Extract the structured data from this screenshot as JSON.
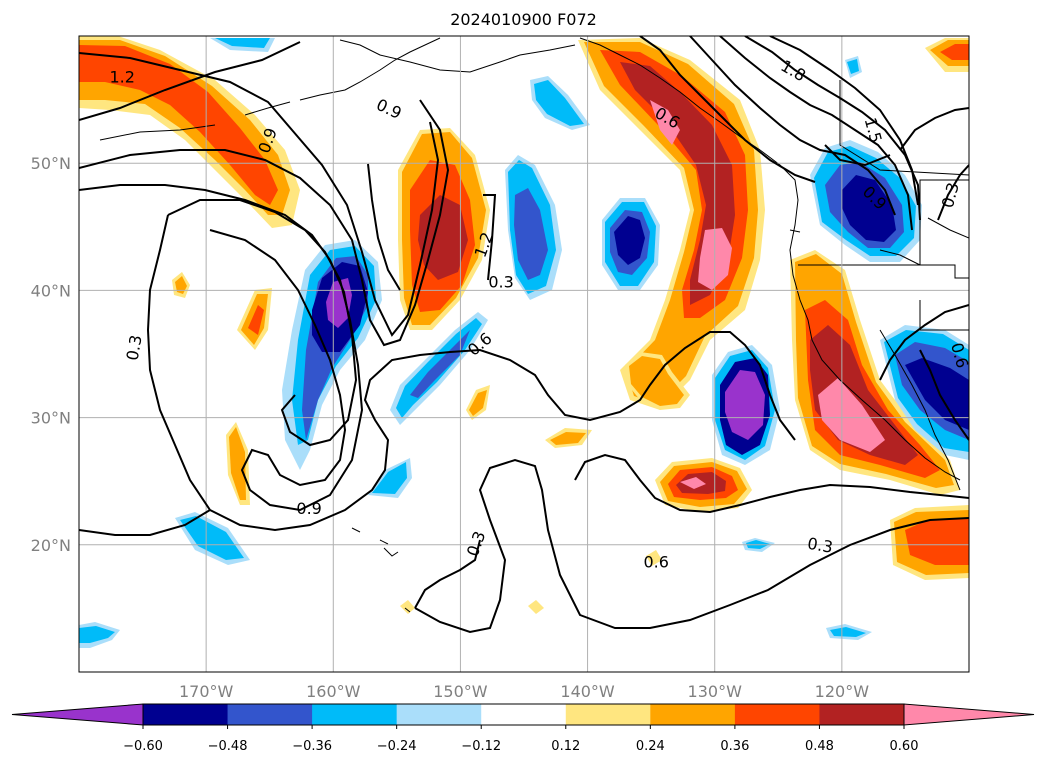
{
  "title": "2024010900 F072",
  "map": {
    "lon_range": [
      -180,
      -110
    ],
    "lat_range": [
      10,
      60
    ],
    "lon_ticks": [
      {
        "lon": -170,
        "label": "170°W"
      },
      {
        "lon": -160,
        "label": "160°W"
      },
      {
        "lon": -150,
        "label": "150°W"
      },
      {
        "lon": -140,
        "label": "140°W"
      },
      {
        "lon": -130,
        "label": "130°W"
      },
      {
        "lon": -120,
        "label": "120°W"
      }
    ],
    "lat_ticks": [
      {
        "lat": 50,
        "label": "50°N"
      },
      {
        "lat": 40,
        "label": "40°N"
      },
      {
        "lat": 30,
        "label": "30°N"
      },
      {
        "lat": 20,
        "label": "20°N"
      }
    ],
    "gridlines": true
  },
  "colorbar": {
    "colors": [
      "#9933cc",
      "#000090",
      "#3355cc",
      "#00bbf9",
      "#aadefa",
      "#ffffff",
      "#ffe680",
      "#ffa500",
      "#ff4500",
      "#b22222",
      "#ff88aa"
    ],
    "tick_labels": [
      "−0.60",
      "−0.48",
      "−0.36",
      "−0.24",
      "−0.12",
      "0.12",
      "0.24",
      "0.36",
      "0.48",
      "0.60"
    ],
    "extend": "both"
  },
  "contour_labels": [
    {
      "text": "1.2",
      "lon": -176.6,
      "lat": 56.8,
      "rot": 0
    },
    {
      "text": "0.9",
      "lon": -165.2,
      "lat": 51.8,
      "rot": -70
    },
    {
      "text": "0.9",
      "lon": -155.6,
      "lat": 54.3,
      "rot": 25
    },
    {
      "text": "1.2",
      "lon": -148.2,
      "lat": 43.6,
      "rot": -70
    },
    {
      "text": "0.3",
      "lon": -146.8,
      "lat": 40.7,
      "rot": 0
    },
    {
      "text": "0.6",
      "lon": -148.5,
      "lat": 35.8,
      "rot": -40
    },
    {
      "text": "0.6",
      "lon": -133.7,
      "lat": 53.6,
      "rot": 30
    },
    {
      "text": "1.8",
      "lon": -123.8,
      "lat": 57.3,
      "rot": 30
    },
    {
      "text": "1.5",
      "lon": -117.5,
      "lat": 52.6,
      "rot": 75
    },
    {
      "text": "0.9",
      "lon": -117.4,
      "lat": 47.3,
      "rot": 45
    },
    {
      "text": "0.3",
      "lon": -111.5,
      "lat": 47.5,
      "rot": -75
    },
    {
      "text": "0.6",
      "lon": -110.7,
      "lat": 34.9,
      "rot": 75
    },
    {
      "text": "0.3",
      "lon": -175.7,
      "lat": 35.5,
      "rot": -80
    },
    {
      "text": "0.9",
      "lon": -161.9,
      "lat": 22.9,
      "rot": 0
    },
    {
      "text": "0.3",
      "lon": -148.8,
      "lat": 20.1,
      "rot": -70
    },
    {
      "text": "0.6",
      "lon": -134.6,
      "lat": 18.7,
      "rot": 0
    },
    {
      "text": "0.3",
      "lon": -121.7,
      "lat": 20.0,
      "rot": 10
    }
  ]
}
